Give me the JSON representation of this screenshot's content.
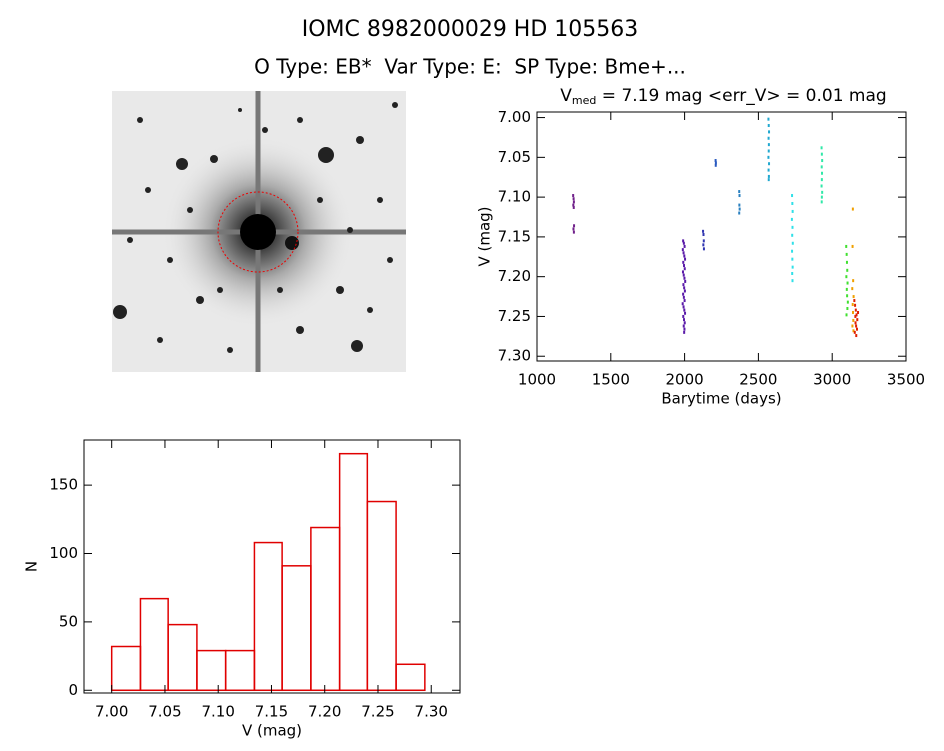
{
  "title": "IOMC 8982000029    HD 105563",
  "subtitle": "O Type: EB*  Var Type: E:  SP Type: Bme+...",
  "chart_data": [
    {
      "type": "scatter",
      "title": [
        "V",
        "med",
        " = 7.19 mag <err_V> = 0.01 mag"
      ],
      "x_label": "Barytime (days)",
      "y_label": "V (mag)",
      "xlim": [
        1000,
        3500
      ],
      "xticks": [
        1000,
        1500,
        2000,
        2500,
        3000,
        3500
      ],
      "ylim": [
        7.306,
        6.993
      ],
      "yticks": [
        {
          "value": 7.0,
          "label": "7.00"
        },
        {
          "value": 7.05,
          "label": "7.05"
        },
        {
          "value": 7.1,
          "label": "7.10"
        },
        {
          "value": 7.15,
          "label": "7.15"
        },
        {
          "value": 7.2,
          "label": "7.20"
        },
        {
          "value": 7.25,
          "label": "7.25"
        },
        {
          "value": 7.3,
          "label": "7.30"
        }
      ],
      "series": [
        {
          "color": "#70208a",
          "x": [
            1245,
            1248,
            1250,
            1246,
            1249,
            1251,
            1247,
            1250
          ],
          "values": [
            7.098,
            7.102,
            7.106,
            7.11,
            7.113,
            7.136,
            7.14,
            7.144
          ]
        },
        {
          "color": "#5a1aa8",
          "x": [
            1990,
            1995,
            2000,
            1988,
            1993,
            1998,
            2003,
            1991,
            1996,
            2001,
            1989,
            1994,
            1999,
            2004,
            1992,
            1997,
            2002,
            1990,
            1995,
            2000,
            1987,
            1993,
            1998,
            2003,
            1991,
            1996,
            2001,
            1994,
            1999,
            1997
          ],
          "values": [
            7.155,
            7.158,
            7.162,
            7.166,
            7.17,
            7.174,
            7.178,
            7.182,
            7.186,
            7.19,
            7.194,
            7.198,
            7.202,
            7.206,
            7.21,
            7.214,
            7.218,
            7.222,
            7.226,
            7.23,
            7.234,
            7.238,
            7.242,
            7.246,
            7.25,
            7.254,
            7.258,
            7.262,
            7.266,
            7.27
          ]
        },
        {
          "color": "#3035b0",
          "x": [
            2125,
            2128,
            2130,
            2127,
            2131
          ],
          "values": [
            7.143,
            7.147,
            7.155,
            7.16,
            7.165
          ]
        },
        {
          "color": "#2a5ac0",
          "x": [
            2210,
            2212,
            2211
          ],
          "values": [
            7.054,
            7.057,
            7.06
          ]
        },
        {
          "color": "#2a80c0",
          "x": [
            2370,
            2372,
            2371,
            2373,
            2370
          ],
          "values": [
            7.093,
            7.098,
            7.11,
            7.115,
            7.12
          ]
        },
        {
          "color": "#20a8d0",
          "x": [
            2568,
            2570,
            2572,
            2569,
            2571,
            2570,
            2568,
            2572,
            2569,
            2571,
            2570
          ],
          "values": [
            7.002,
            7.01,
            7.018,
            7.026,
            7.034,
            7.042,
            7.05,
            7.058,
            7.066,
            7.074,
            7.078
          ]
        },
        {
          "color": "#30e0e8",
          "x": [
            2728,
            2730,
            2732,
            2727,
            2731,
            2729,
            2733,
            2728,
            2730,
            2732,
            2729,
            2731
          ],
          "values": [
            7.098,
            7.108,
            7.118,
            7.128,
            7.138,
            7.148,
            7.158,
            7.168,
            7.178,
            7.188,
            7.196,
            7.205
          ]
        },
        {
          "color": "#30e8a8",
          "x": [
            2928,
            2930,
            2932,
            2929,
            2931,
            2930,
            2928,
            2932,
            2930,
            2929
          ],
          "values": [
            7.038,
            7.046,
            7.054,
            7.062,
            7.07,
            7.078,
            7.086,
            7.094,
            7.1,
            7.106
          ]
        },
        {
          "color": "#40e030",
          "x": [
            3095,
            3098,
            3100,
            3102,
            3096,
            3104,
            3099,
            3101,
            3106,
            3103,
            3097
          ],
          "values": [
            7.162,
            7.172,
            7.182,
            7.192,
            7.2,
            7.208,
            7.216,
            7.224,
            7.232,
            7.24,
            7.248
          ]
        },
        {
          "color": "#f0a000",
          "x": [
            3140,
            3138,
            3142,
            3136,
            3145,
            3139,
            3141,
            3143,
            3137,
            3144
          ],
          "values": [
            7.115,
            7.162,
            7.205,
            7.215,
            7.225,
            7.235,
            7.245,
            7.255,
            7.262,
            7.268
          ]
        },
        {
          "color": "#e02000",
          "x": [
            3150,
            3155,
            3160,
            3165,
            3170,
            3158,
            3162,
            3168,
            3153,
            3175,
            3163,
            3157
          ],
          "values": [
            7.23,
            7.236,
            7.242,
            7.248,
            7.254,
            7.258,
            7.262,
            7.266,
            7.27,
            7.245,
            7.274,
            7.25
          ]
        }
      ]
    },
    {
      "type": "histogram",
      "x_label": "V (mag)",
      "y_label": "N",
      "color": "#e00000",
      "bins": [
        7.0,
        7.027,
        7.053,
        7.08,
        7.107,
        7.134,
        7.16,
        7.187,
        7.214,
        7.24,
        7.267,
        7.294
      ],
      "values": [
        32,
        67,
        48,
        29,
        29,
        108,
        91,
        119,
        173,
        138,
        19
      ],
      "xlim": [
        6.974,
        7.327
      ],
      "xticks": [
        {
          "value": 7.0,
          "label": "7.00"
        },
        {
          "value": 7.05,
          "label": "7.05"
        },
        {
          "value": 7.1,
          "label": "7.10"
        },
        {
          "value": 7.15,
          "label": "7.15"
        },
        {
          "value": 7.2,
          "label": "7.20"
        },
        {
          "value": 7.25,
          "label": "7.25"
        },
        {
          "value": 7.3,
          "label": "7.30"
        }
      ],
      "ylim": [
        -2,
        183
      ],
      "yticks": [
        0,
        50,
        100,
        150
      ]
    }
  ]
}
